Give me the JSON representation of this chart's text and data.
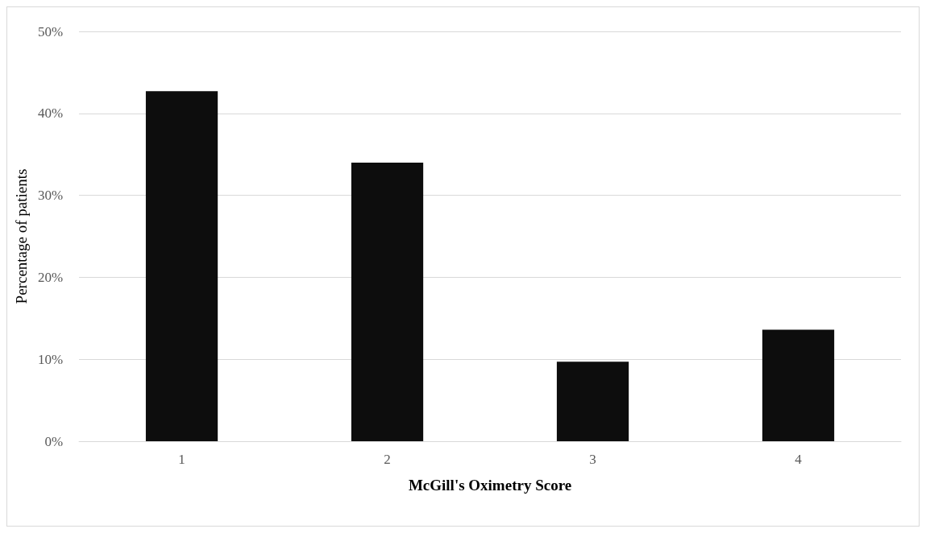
{
  "chart_data": {
    "type": "bar",
    "xlabel": "McGill's Oximetry Score",
    "ylabel": "Percentage of patients",
    "categories": [
      "1",
      "2",
      "3",
      "4"
    ],
    "series": [
      {
        "color": "#0d0d0d",
        "values": [
          42.7,
          34.0,
          9.7,
          13.6
        ]
      }
    ],
    "ylim": [
      0,
      50
    ],
    "yticks": [
      {
        "value": 0,
        "label": "0%"
      },
      {
        "value": 10,
        "label": "10%"
      },
      {
        "value": 20,
        "label": "20%"
      },
      {
        "value": 30,
        "label": "30%"
      },
      {
        "value": 40,
        "label": "40%"
      },
      {
        "value": 50,
        "label": "50%"
      }
    ],
    "grid": "y"
  }
}
